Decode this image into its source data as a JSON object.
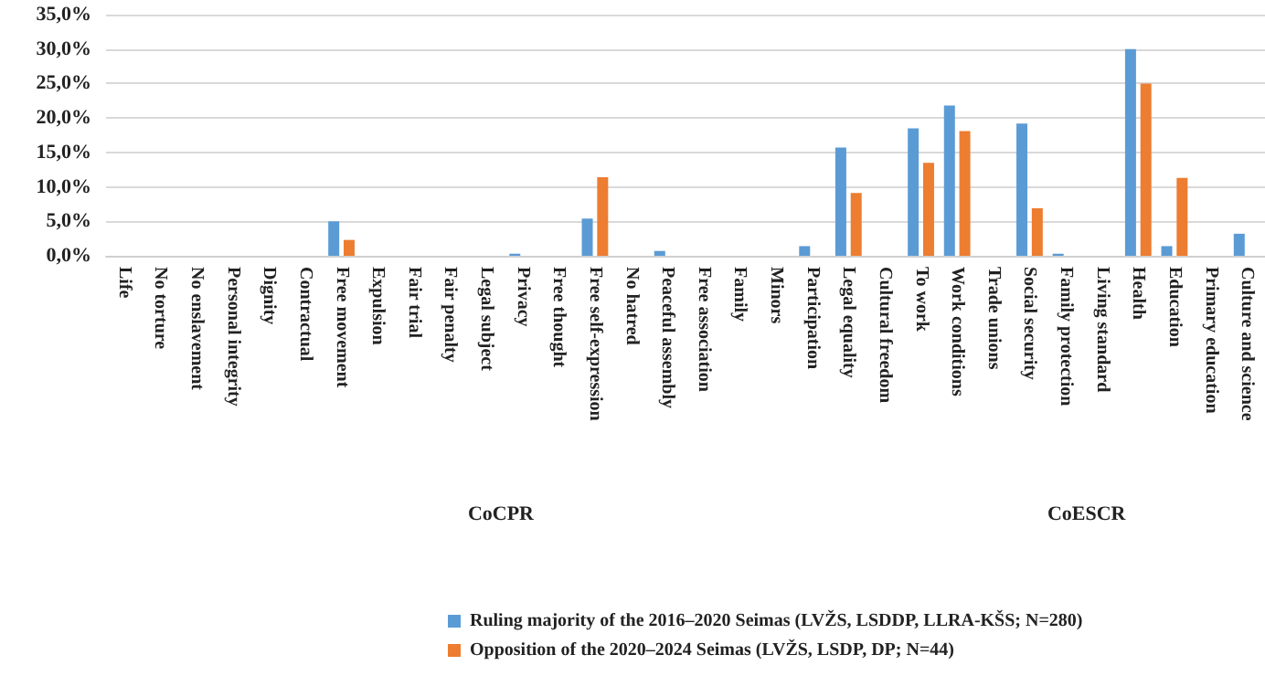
{
  "chart_data": {
    "type": "bar",
    "categories": [
      "Life",
      "No torture",
      "No enslavement",
      "Personal integrity",
      "Dignity",
      "Contractual",
      "Free movement",
      "Expulsion",
      "Fair trial",
      "Fair penalty",
      "Legal subject",
      "Privacy",
      "Free thought",
      "Free self-expression",
      "No hatred",
      "Peaceful assembly",
      "Free association",
      "Family",
      "Minors",
      "Participation",
      "Legal equality",
      "Cultural freedom",
      "To work",
      "Work conditions",
      "Trade unions",
      "Social security",
      "Family protection",
      "Living standard",
      "Health",
      "Education",
      "Primary education",
      "Culture and science"
    ],
    "series": [
      {
        "name": "Ruling majority of the 2016–2020 Seimas (LVŽS, LSDDP, LLRA-KŠS; N=280)",
        "color": "#5b9bd5",
        "values": [
          0,
          0,
          0,
          0,
          0,
          0,
          5.0,
          0,
          0,
          0,
          0,
          0.3,
          0,
          5.4,
          0,
          0.7,
          0,
          0,
          0,
          1.4,
          15.7,
          0,
          18.5,
          21.8,
          0,
          19.2,
          0.3,
          0,
          30.0,
          1.4,
          0,
          3.2
        ]
      },
      {
        "name": "Opposition of the 2020–2024 Seimas (LVŽS, LSDP, DP; N=44)",
        "color": "#ed7d31",
        "values": [
          0,
          0,
          0,
          0,
          0,
          0,
          2.3,
          0,
          0,
          0,
          0,
          0,
          0,
          11.4,
          0,
          0,
          0,
          0,
          0,
          0,
          9.1,
          0,
          13.5,
          18.1,
          0,
          6.9,
          0,
          0,
          25.0,
          11.3,
          0,
          0
        ]
      }
    ],
    "ylim": [
      0,
      35
    ],
    "yticks": [
      {
        "value": 0,
        "label": "0,0%"
      },
      {
        "value": 5,
        "label": "5,0%"
      },
      {
        "value": 10,
        "label": "10,0%"
      },
      {
        "value": 15,
        "label": "15,0%"
      },
      {
        "value": 20,
        "label": "20,0%"
      },
      {
        "value": 25,
        "label": "25,0%"
      },
      {
        "value": 30,
        "label": "30,0%"
      },
      {
        "value": 35,
        "label": "35,0%"
      }
    ],
    "grid": "y",
    "legend": "bottom",
    "annotations": [
      "CoCPR",
      "CoESCR"
    ]
  }
}
